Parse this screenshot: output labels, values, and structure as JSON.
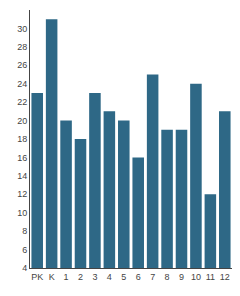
{
  "chart_data": {
    "type": "bar",
    "categories": [
      "PK",
      "K",
      "1",
      "2",
      "3",
      "4",
      "5",
      "6",
      "7",
      "8",
      "9",
      "10",
      "11",
      "12"
    ],
    "values": [
      23,
      31,
      20,
      18,
      23,
      21,
      20,
      16,
      25,
      19,
      19,
      24,
      12,
      21
    ],
    "color": "#2e6886",
    "ylim": [
      4,
      32
    ],
    "yticks": [
      4,
      6,
      8,
      10,
      12,
      14,
      16,
      18,
      20,
      22,
      24,
      26,
      28,
      30
    ],
    "grid": false
  }
}
